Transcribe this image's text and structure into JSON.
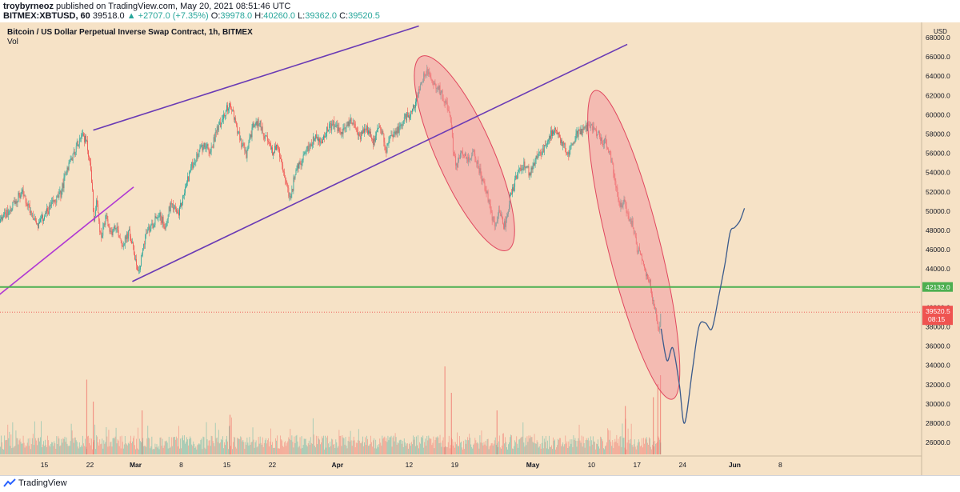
{
  "header": {
    "author": "troybyrneoz",
    "published_text": "published on TradingView.com, May 20, 2021 08:51:46 UTC",
    "symbol": "BITMEX:XBTUSD, 60",
    "last": "39518.0",
    "change": "+2707.0 (+7.35%)",
    "o_label": "O:",
    "o_value": "39978.0",
    "h_label": "H:",
    "h_value": "40260.0",
    "l_label": "L:",
    "l_value": "39362.0",
    "c_label": "C:",
    "c_value": "39520.5"
  },
  "chart": {
    "title": "Bitcoin / US Dollar Perpetual Inverse Swap Contract, 1h, BITMEX",
    "vol_label": "Vol",
    "currency": "USD",
    "price_label": "39520.5",
    "countdown": "08:15",
    "level_label": "42132.0"
  },
  "footer": {
    "brand": "TradingView"
  },
  "colors": {
    "background": "#f6e2c6",
    "up": "#26a69a",
    "down": "#ef5350",
    "trendline": "#6a3bb5",
    "support": "#4caf50",
    "ellipse_fill": "#f28b9a",
    "projection": "#3b5b8c"
  },
  "chart_data": {
    "type": "candlestick",
    "title": "Bitcoin / US Dollar Perpetual Inverse Swap Contract, 1h, BITMEX",
    "ylabel": "USD",
    "ylim": [
      24500,
      69000
    ],
    "y_ticks": [
      "26000.0",
      "28000.0",
      "30000.0",
      "32000.0",
      "34000.0",
      "36000.0",
      "38000.0",
      "40000.0",
      "42000.0",
      "44000.0",
      "46000.0",
      "48000.0",
      "50000.0",
      "52000.0",
      "54000.0",
      "56000.0",
      "58000.0",
      "60000.0",
      "62000.0",
      "64000.0",
      "66000.0",
      "68000.0"
    ],
    "x_ticks": [
      "15",
      "22",
      "Mar",
      "8",
      "15",
      "22",
      "Apr",
      "12",
      "19",
      "May",
      "10",
      "17",
      "24",
      "Jun",
      "8"
    ],
    "x_tick_days": [
      -14,
      -7,
      0,
      7,
      14,
      21,
      31,
      42,
      49,
      61,
      70,
      77,
      84,
      92,
      99
    ],
    "x_tick_bold": [
      "Mar",
      "Apr",
      "May",
      "Jun"
    ],
    "price_path": [
      [
        -28,
        38800
      ],
      [
        -27.5,
        42500
      ],
      [
        -26,
        44500
      ],
      [
        -24.5,
        47000
      ],
      [
        -22,
        47800
      ],
      [
        -19.5,
        50000
      ],
      [
        -17.5,
        52000
      ],
      [
        -15,
        48500
      ],
      [
        -13,
        50500
      ],
      [
        -11.5,
        51800
      ],
      [
        -10.5,
        54500
      ],
      [
        -9.5,
        56000
      ],
      [
        -8.3,
        58200
      ],
      [
        -7.5,
        57000
      ],
      [
        -6.8,
        54000
      ],
      [
        -6.4,
        49000
      ],
      [
        -6.0,
        51000
      ],
      [
        -5.3,
        47000
      ],
      [
        -4.5,
        49500
      ],
      [
        -4.0,
        47500
      ],
      [
        -3.0,
        48500
      ],
      [
        -2.0,
        46500
      ],
      [
        -1.0,
        47800
      ],
      [
        0,
        45000
      ],
      [
        0.5,
        43500
      ],
      [
        1.5,
        47500
      ],
      [
        2.5,
        48500
      ],
      [
        3.5,
        49800
      ],
      [
        4.5,
        48500
      ],
      [
        5.5,
        51000
      ],
      [
        6.5,
        49500
      ],
      [
        7.5,
        52000
      ],
      [
        8.5,
        54500
      ],
      [
        9.5,
        55800
      ],
      [
        10.5,
        57000
      ],
      [
        11.5,
        56000
      ],
      [
        12.5,
        58600
      ],
      [
        13.5,
        59600
      ],
      [
        14.2,
        61000
      ],
      [
        15.0,
        60200
      ],
      [
        16.0,
        57500
      ],
      [
        17.0,
        55800
      ],
      [
        18.0,
        58800
      ],
      [
        19.0,
        59200
      ],
      [
        20.0,
        57500
      ],
      [
        21.0,
        56200
      ],
      [
        21.8,
        56800
      ],
      [
        22.5,
        54500
      ],
      [
        23.2,
        52800
      ],
      [
        23.8,
        51000
      ],
      [
        24.5,
        54200
      ],
      [
        25.5,
        55000
      ],
      [
        26.5,
        56500
      ],
      [
        27.5,
        57800
      ],
      [
        28.5,
        57000
      ],
      [
        29.5,
        58500
      ],
      [
        30.5,
        59000
      ],
      [
        31.5,
        58000
      ],
      [
        33.0,
        59400
      ],
      [
        34.5,
        57800
      ],
      [
        35.5,
        58500
      ],
      [
        36.5,
        57300
      ],
      [
        37.5,
        58800
      ],
      [
        38.5,
        56500
      ],
      [
        39.5,
        58000
      ],
      [
        40.5,
        58600
      ],
      [
        41.5,
        59800
      ],
      [
        42.5,
        60300
      ],
      [
        43.2,
        61800
      ],
      [
        43.7,
        63000
      ],
      [
        44.3,
        64000
      ],
      [
        44.8,
        64800
      ],
      [
        45.5,
        63500
      ],
      [
        46.5,
        62800
      ],
      [
        47.5,
        61500
      ],
      [
        48.3,
        59800
      ],
      [
        48.8,
        56000
      ],
      [
        49.3,
        54500
      ],
      [
        50.0,
        56500
      ],
      [
        51.0,
        55200
      ],
      [
        52.0,
        56000
      ],
      [
        53.0,
        53800
      ],
      [
        54.0,
        51800
      ],
      [
        54.7,
        49500
      ],
      [
        55.2,
        48200
      ],
      [
        55.8,
        49800
      ],
      [
        56.5,
        48500
      ],
      [
        57.0,
        49000
      ],
      [
        57.5,
        51500
      ],
      [
        58.5,
        53500
      ],
      [
        59.5,
        54800
      ],
      [
        60.5,
        54000
      ],
      [
        61.5,
        55400
      ],
      [
        62.5,
        56200
      ],
      [
        63.5,
        57800
      ],
      [
        64.5,
        58600
      ],
      [
        65.5,
        57000
      ],
      [
        66.5,
        56000
      ],
      [
        67.5,
        57800
      ],
      [
        68.5,
        58300
      ],
      [
        69.5,
        58900
      ],
      [
        70.5,
        58400
      ],
      [
        71.5,
        57500
      ],
      [
        72.3,
        57000
      ],
      [
        73.0,
        55500
      ],
      [
        73.7,
        53000
      ],
      [
        74.3,
        50500
      ],
      [
        75.0,
        51000
      ],
      [
        75.7,
        49500
      ],
      [
        76.3,
        48500
      ],
      [
        77.0,
        46000
      ],
      [
        77.7,
        45500
      ],
      [
        78.3,
        43500
      ],
      [
        79.0,
        42800
      ],
      [
        79.5,
        40500
      ],
      [
        80.0,
        39200
      ],
      [
        80.3,
        37500
      ],
      [
        80.7,
        39500
      ]
    ],
    "volume_spikes": [
      [
        -7.5,
        0.85
      ],
      [
        -6.5,
        0.6
      ],
      [
        1.0,
        0.5
      ],
      [
        14.5,
        0.45
      ],
      [
        47.5,
        1.0
      ],
      [
        48.5,
        0.7
      ],
      [
        55.5,
        0.5
      ],
      [
        75.2,
        0.55
      ],
      [
        79.5,
        0.65
      ],
      [
        80.2,
        0.8
      ],
      [
        80.6,
        0.9
      ]
    ],
    "current_price": 39520.5,
    "horizontal_level": 42132.0,
    "trendlines": [
      [
        [
          -6.5,
          58400
        ],
        [
          43.5,
          69200
        ]
      ],
      [
        [
          -0.5,
          42700
        ],
        [
          75.5,
          67300
        ]
      ],
      [
        [
          -28,
          37500
        ],
        [
          -0.3,
          52500
        ]
      ]
    ],
    "highlight_ellipses": [
      {
        "center": [
          50.5,
          56000
        ],
        "rx_days": 4.3,
        "ry_price": 11000,
        "angle_deg": -24
      },
      {
        "center": [
          76.5,
          46500
        ],
        "rx_days": 4.0,
        "ry_price": 16500,
        "angle_deg": -14
      }
    ],
    "projection": [
      [
        80.7,
        37800
      ],
      [
        81.6,
        34500
      ],
      [
        82.5,
        35800
      ],
      [
        83.5,
        32000
      ],
      [
        84.3,
        28000
      ],
      [
        85.5,
        33500
      ],
      [
        86.5,
        38000
      ],
      [
        87.5,
        38400
      ],
      [
        88.5,
        37800
      ],
      [
        89.5,
        41000
      ],
      [
        90.5,
        44500
      ],
      [
        91.3,
        47800
      ],
      [
        92.0,
        48300
      ],
      [
        92.8,
        49000
      ],
      [
        93.5,
        50300
      ]
    ]
  }
}
